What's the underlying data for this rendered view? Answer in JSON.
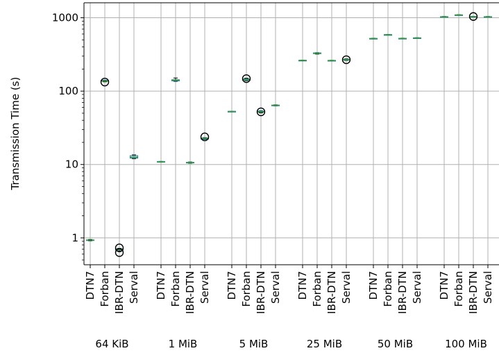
{
  "chart_data": {
    "type": "box",
    "title": "",
    "ylabel": "Transmission Time (s)",
    "yscale": "log",
    "ylim": [
      0.43,
      1600
    ],
    "yticks": [
      {
        "value": 1,
        "label": "1"
      },
      {
        "value": 10,
        "label": "10"
      },
      {
        "value": 100,
        "label": "100"
      },
      {
        "value": 1000,
        "label": "1000"
      }
    ],
    "grid": true,
    "colors": {
      "median": "#2ca02c",
      "box": "#1f77b4",
      "grid": "#b0b0b0"
    },
    "groups": [
      {
        "label": "64 KiB",
        "boxes": [
          {
            "name": "DTN7",
            "q1": 0.92,
            "median": 0.93,
            "q3": 0.94,
            "whislo": 0.91,
            "whishi": 0.95,
            "fliers": []
          },
          {
            "name": "Forban",
            "q1": 136,
            "median": 137,
            "q3": 140,
            "whislo": 134,
            "whishi": 141,
            "fliers": [
              133
            ]
          },
          {
            "name": "IBR-DTN",
            "q1": 0.68,
            "median": 0.69,
            "q3": 0.71,
            "whislo": 0.66,
            "whishi": 0.72,
            "fliers": [
              0.63,
              0.73
            ]
          },
          {
            "name": "Serval",
            "q1": 12.2,
            "median": 12.6,
            "q3": 13.2,
            "whislo": 12.0,
            "whishi": 13.5,
            "fliers": []
          }
        ]
      },
      {
        "label": "1 MiB",
        "boxes": [
          {
            "name": "DTN7",
            "q1": 10.8,
            "median": 10.9,
            "q3": 11.0,
            "whislo": 10.8,
            "whishi": 11.0,
            "fliers": []
          },
          {
            "name": "Forban",
            "q1": 138,
            "median": 141,
            "q3": 143,
            "whislo": 136,
            "whishi": 151,
            "fliers": []
          },
          {
            "name": "IBR-DTN",
            "q1": 10.5,
            "median": 10.6,
            "q3": 10.7,
            "whislo": 10.4,
            "whishi": 10.8,
            "fliers": []
          },
          {
            "name": "Serval",
            "q1": 22.2,
            "median": 22.6,
            "q3": 23.0,
            "whislo": 22.0,
            "whishi": 23.2,
            "fliers": [
              23.8
            ]
          }
        ]
      },
      {
        "label": "5 MiB",
        "boxes": [
          {
            "name": "DTN7",
            "q1": 52.5,
            "median": 52.8,
            "q3": 53.0,
            "whislo": 52.3,
            "whishi": 53.2,
            "fliers": []
          },
          {
            "name": "Forban",
            "q1": 141,
            "median": 144,
            "q3": 147,
            "whislo": 139,
            "whishi": 150,
            "fliers": [
              148
            ]
          },
          {
            "name": "IBR-DTN",
            "q1": 51.5,
            "median": 52.5,
            "q3": 53.5,
            "whislo": 50.5,
            "whishi": 54,
            "fliers": [
              52.2
            ]
          },
          {
            "name": "Serval",
            "q1": 63.5,
            "median": 64,
            "q3": 64.5,
            "whislo": 63,
            "whishi": 65,
            "fliers": []
          }
        ]
      },
      {
        "label": "25 MiB",
        "boxes": [
          {
            "name": "DTN7",
            "q1": 261,
            "median": 262,
            "q3": 263,
            "whislo": 260,
            "whishi": 264,
            "fliers": []
          },
          {
            "name": "Forban",
            "q1": 324,
            "median": 328,
            "q3": 332,
            "whislo": 320,
            "whishi": 334,
            "fliers": []
          },
          {
            "name": "IBR-DTN",
            "q1": 260,
            "median": 261,
            "q3": 262,
            "whislo": 259,
            "whishi": 263,
            "fliers": []
          },
          {
            "name": "Serval",
            "q1": 265,
            "median": 268,
            "q3": 272,
            "whislo": 262,
            "whishi": 275,
            "fliers": [
              268
            ]
          }
        ]
      },
      {
        "label": "50 MiB",
        "boxes": [
          {
            "name": "DTN7",
            "q1": 517,
            "median": 520,
            "q3": 523,
            "whislo": 514,
            "whishi": 526,
            "fliers": []
          },
          {
            "name": "Forban",
            "q1": 585,
            "median": 587,
            "q3": 589,
            "whislo": 583,
            "whishi": 591,
            "fliers": []
          },
          {
            "name": "IBR-DTN",
            "q1": 518,
            "median": 521,
            "q3": 524,
            "whislo": 515,
            "whishi": 527,
            "fliers": []
          },
          {
            "name": "Serval",
            "q1": 528,
            "median": 530,
            "q3": 532,
            "whislo": 526,
            "whishi": 534,
            "fliers": []
          }
        ]
      },
      {
        "label": "100 MiB",
        "boxes": [
          {
            "name": "DTN7",
            "q1": 1025,
            "median": 1030,
            "q3": 1035,
            "whislo": 1020,
            "whishi": 1040,
            "fliers": []
          },
          {
            "name": "Forban",
            "q1": 1085,
            "median": 1090,
            "q3": 1095,
            "whislo": 1080,
            "whishi": 1100,
            "fliers": []
          },
          {
            "name": "IBR-DTN",
            "q1": 1030,
            "median": 1035,
            "q3": 1040,
            "whislo": 1025,
            "whishi": 1045,
            "fliers": [
              1040
            ]
          },
          {
            "name": "Serval",
            "q1": 1025,
            "median": 1030,
            "q3": 1035,
            "whislo": 1020,
            "whishi": 1040,
            "fliers": []
          }
        ]
      }
    ]
  }
}
